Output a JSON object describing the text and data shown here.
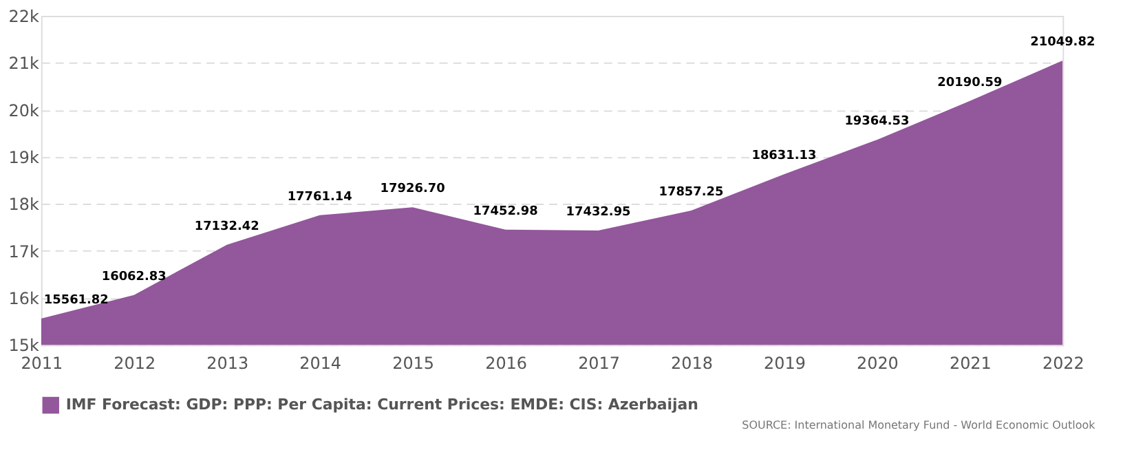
{
  "chart_data": {
    "type": "area",
    "categories": [
      "2011",
      "2012",
      "2013",
      "2014",
      "2015",
      "2016",
      "2017",
      "2018",
      "2019",
      "2020",
      "2021",
      "2022"
    ],
    "series": [
      {
        "name": "IMF Forecast: GDP: PPP: Per Capita: Current Prices: EMDE: CIS: Azerbaijan",
        "color": "#93579c",
        "values": [
          15561.82,
          16062.83,
          17132.42,
          17761.14,
          17926.7,
          17452.98,
          17432.95,
          17857.25,
          18631.13,
          19364.53,
          20190.59,
          21049.82
        ],
        "value_labels": [
          "15561.82",
          "16062.83",
          "17132.42",
          "17761.14",
          "17926.70",
          "17452.98",
          "17432.95",
          "17857.25",
          "18631.13",
          "19364.53",
          "20190.59",
          "21049.82"
        ]
      }
    ],
    "ylim": [
      15000,
      22000
    ],
    "yticks": [
      {
        "value": 15000,
        "label": "15k"
      },
      {
        "value": 16000,
        "label": "16k"
      },
      {
        "value": 17000,
        "label": "17k"
      },
      {
        "value": 18000,
        "label": "18k"
      },
      {
        "value": 19000,
        "label": "19k"
      },
      {
        "value": 20000,
        "label": "20k"
      },
      {
        "value": 21000,
        "label": "21k"
      },
      {
        "value": 22000,
        "label": "22k"
      }
    ],
    "grid": "y",
    "legend": "bottom",
    "annotations": [
      "SOURCE: International Monetary Fund - World Economic Outlook"
    ]
  }
}
